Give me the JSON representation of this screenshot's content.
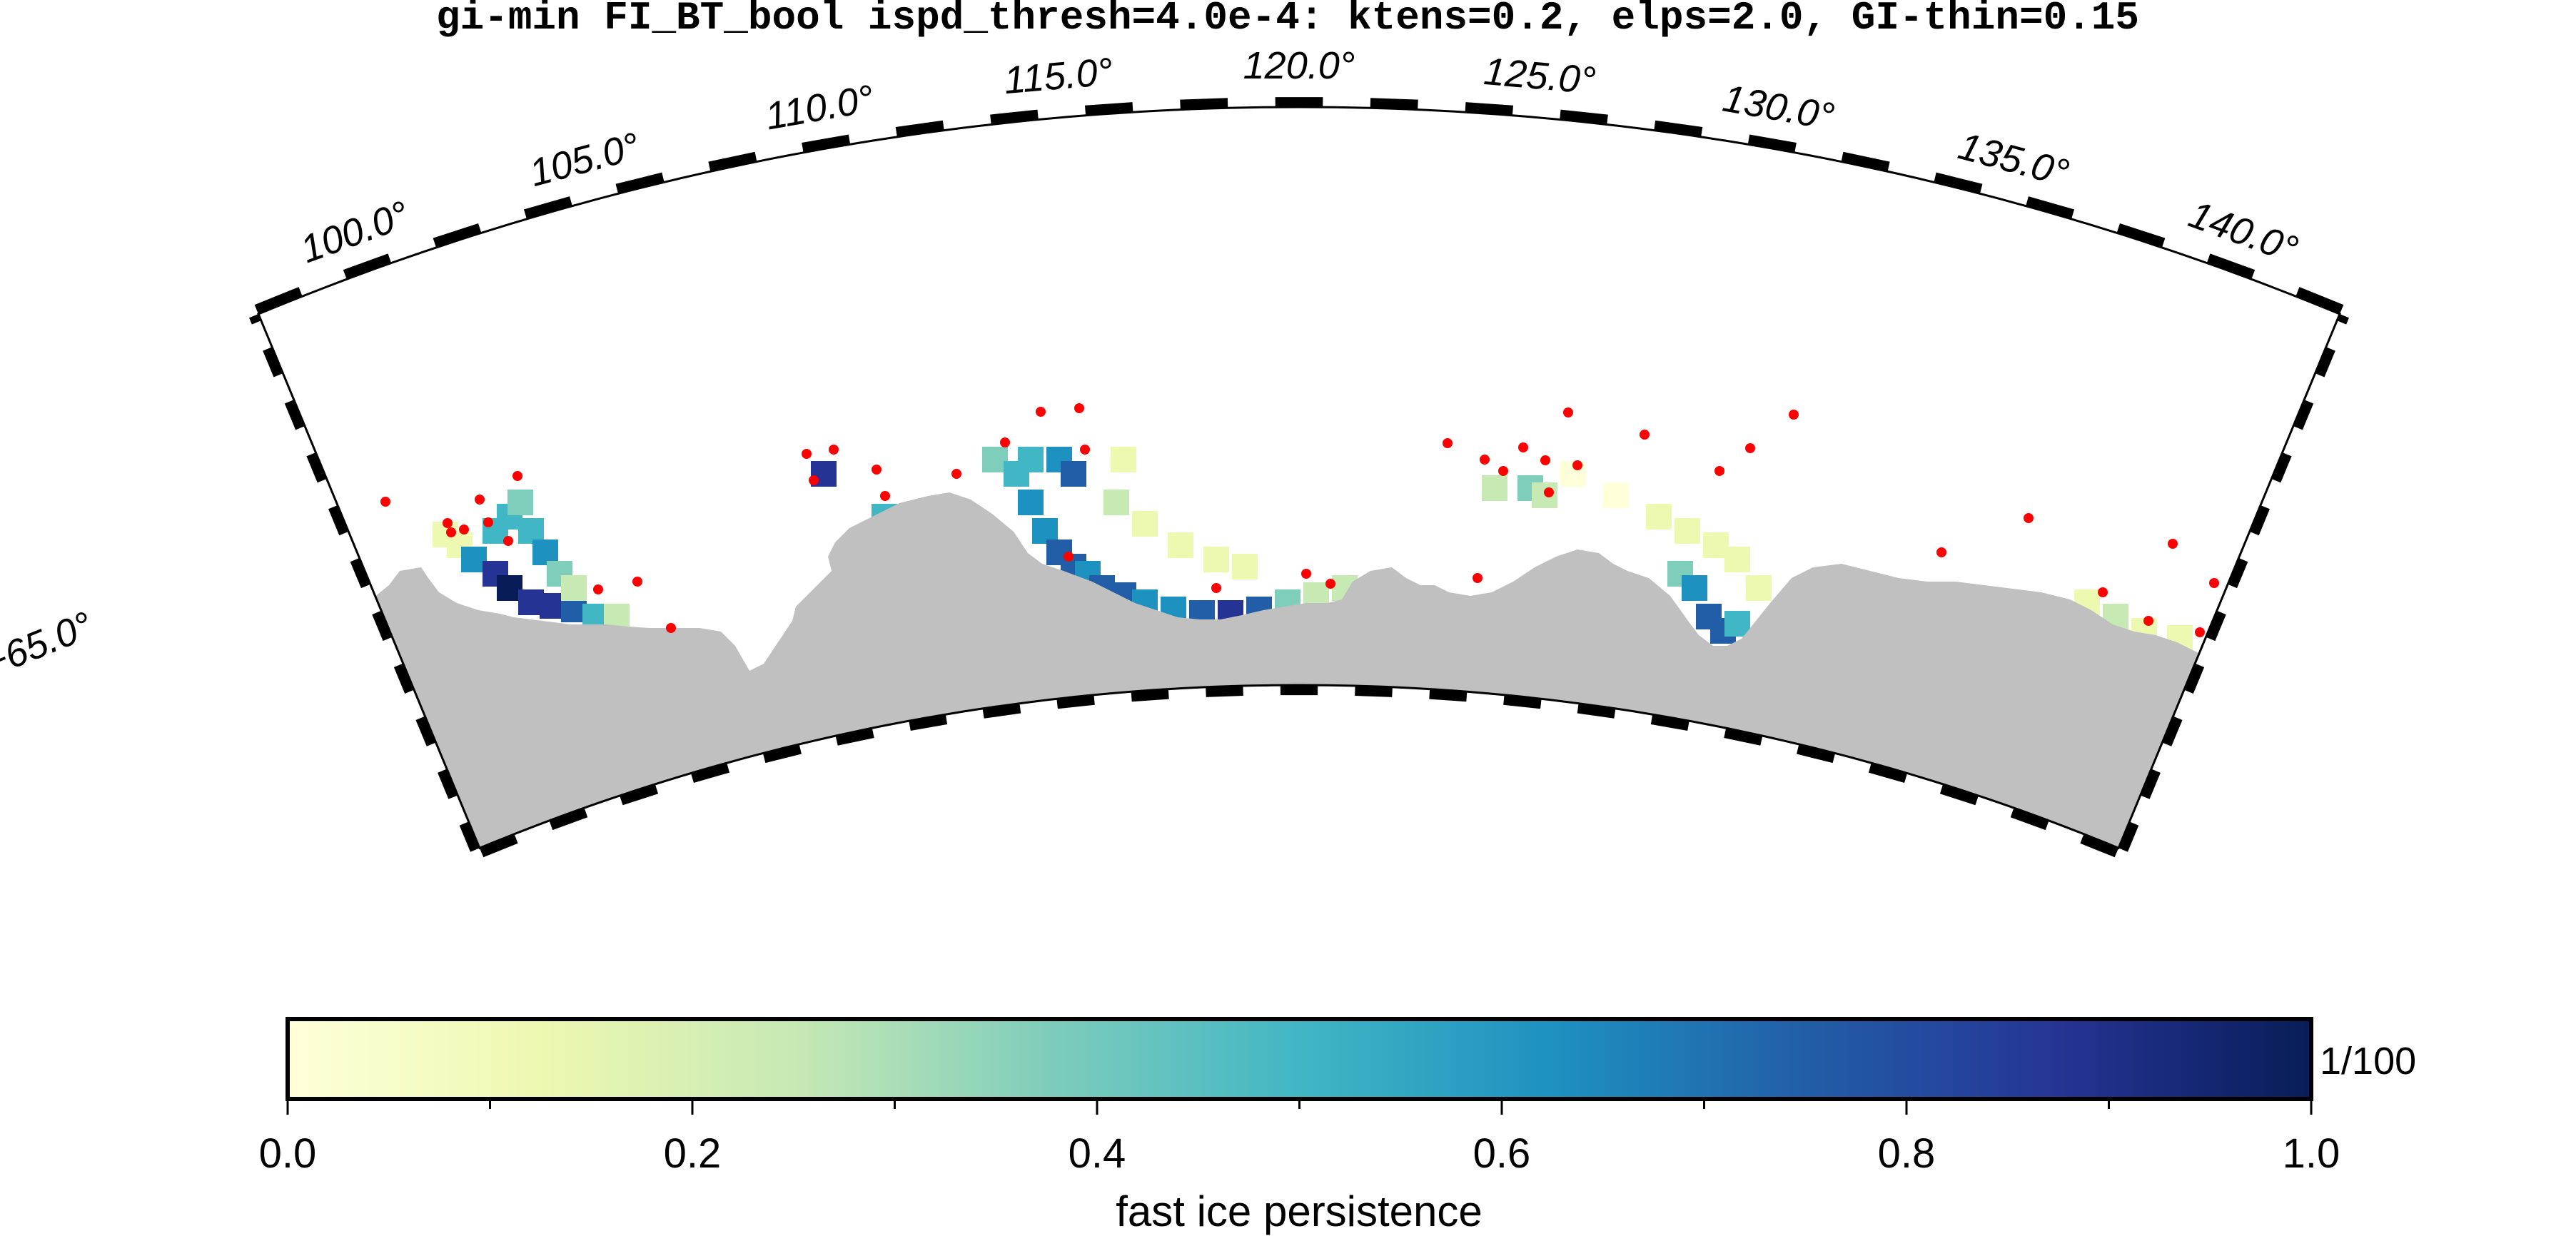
{
  "title": "gi-min FI_BT_bool ispd_thresh=4.0e-4: ktens=0.2, elps=2.0, GI-thin=0.15",
  "map": {
    "projection": "polar stereographic fan",
    "lon_range": [
      97.5,
      142.5
    ],
    "lon_labels": [
      {
        "lon": 100,
        "text": "100.0°"
      },
      {
        "lon": 105,
        "text": "105.0°"
      },
      {
        "lon": 110,
        "text": "110.0°"
      },
      {
        "lon": 115,
        "text": "115.0°"
      },
      {
        "lon": 120,
        "text": "120.0°"
      },
      {
        "lon": 125,
        "text": "125.0°"
      },
      {
        "lon": 130,
        "text": "130.0°"
      },
      {
        "lon": 135,
        "text": "135.0°"
      },
      {
        "lon": 140,
        "text": "140.0°"
      }
    ],
    "lat_labels": [
      {
        "lat": -65,
        "text": "−65.0°"
      }
    ],
    "land_color": "#c0c0c0",
    "grounded_iceberg_color": "#ff0000"
  },
  "colorbar": {
    "colormap": "YlGnBu",
    "range": [
      0.0,
      1.0
    ],
    "ticks": [
      {
        "value": 0.0,
        "text": "0.0"
      },
      {
        "value": 0.2,
        "text": "0.2"
      },
      {
        "value": 0.4,
        "text": "0.4"
      },
      {
        "value": 0.6,
        "text": "0.6"
      },
      {
        "value": 0.8,
        "text": "0.8"
      },
      {
        "value": 1.0,
        "text": "1.0"
      }
    ],
    "unit": "1/100",
    "label": "fast ice persistence",
    "stops": [
      "#ffffd9",
      "#edf8b1",
      "#c7e9b4",
      "#7fcdbb",
      "#41b6c4",
      "#1d91c0",
      "#225ea8",
      "#253494",
      "#081d58"
    ]
  }
}
